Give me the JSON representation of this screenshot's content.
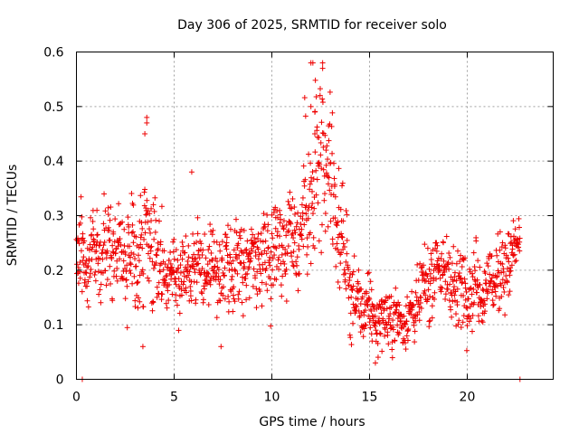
{
  "chart_data": {
    "type": "scatter",
    "title": "Day 306 of 2025, SRMTID for receiver solo",
    "xlabel": "GPS time / hours",
    "ylabel": "SRMTID / TECUs",
    "xlim": [
      0,
      24.4
    ],
    "ylim": [
      0,
      0.6
    ],
    "xticks": [
      0,
      5,
      10,
      15,
      20
    ],
    "yticks": [
      0,
      0.1,
      0.2,
      0.3,
      0.4,
      0.5,
      0.6
    ],
    "xtick_labels": [
      "0",
      "5",
      "10",
      "15",
      "20"
    ],
    "ytick_labels": [
      "0",
      "0.1",
      "0.2",
      "0.3",
      "0.4",
      "0.5",
      "0.6"
    ],
    "grid": true,
    "marker": "+",
    "color": "#ee0000",
    "series": [
      {
        "name": "SRMTID",
        "time_range_hours": [
          0,
          22.7
        ],
        "profile": [
          {
            "t": 0.0,
            "mean": 0.23,
            "spread": 0.06
          },
          {
            "t": 1.0,
            "mean": 0.24,
            "spread": 0.07
          },
          {
            "t": 2.0,
            "mean": 0.25,
            "spread": 0.07
          },
          {
            "t": 3.0,
            "mean": 0.21,
            "spread": 0.07
          },
          {
            "t": 3.6,
            "mean": 0.26,
            "spread": 0.1
          },
          {
            "t": 4.5,
            "mean": 0.19,
            "spread": 0.05
          },
          {
            "t": 6.0,
            "mean": 0.21,
            "spread": 0.06
          },
          {
            "t": 7.5,
            "mean": 0.19,
            "spread": 0.06
          },
          {
            "t": 9.0,
            "mean": 0.22,
            "spread": 0.06
          },
          {
            "t": 10.5,
            "mean": 0.25,
            "spread": 0.07
          },
          {
            "t": 11.5,
            "mean": 0.28,
            "spread": 0.09
          },
          {
            "t": 12.2,
            "mean": 0.36,
            "spread": 0.13
          },
          {
            "t": 12.8,
            "mean": 0.38,
            "spread": 0.13
          },
          {
            "t": 13.5,
            "mean": 0.27,
            "spread": 0.08
          },
          {
            "t": 14.2,
            "mean": 0.14,
            "spread": 0.05
          },
          {
            "t": 15.5,
            "mean": 0.11,
            "spread": 0.04
          },
          {
            "t": 17.0,
            "mean": 0.11,
            "spread": 0.04
          },
          {
            "t": 18.5,
            "mean": 0.21,
            "spread": 0.06
          },
          {
            "t": 19.5,
            "mean": 0.17,
            "spread": 0.06
          },
          {
            "t": 21.0,
            "mean": 0.17,
            "spread": 0.05
          },
          {
            "t": 22.0,
            "mean": 0.21,
            "spread": 0.06
          },
          {
            "t": 22.7,
            "mean": 0.25,
            "spread": 0.04
          }
        ],
        "extremes": [
          {
            "t": 3.6,
            "y": 0.48
          },
          {
            "t": 3.6,
            "y": 0.47
          },
          {
            "t": 3.5,
            "y": 0.45
          },
          {
            "t": 3.4,
            "y": 0.06
          },
          {
            "t": 5.9,
            "y": 0.38
          },
          {
            "t": 7.4,
            "y": 0.06
          },
          {
            "t": 12.0,
            "y": 0.58
          },
          {
            "t": 12.1,
            "y": 0.58
          },
          {
            "t": 12.6,
            "y": 0.58
          },
          {
            "t": 12.6,
            "y": 0.57
          },
          {
            "t": 12.0,
            "y": 0.5
          },
          {
            "t": 12.2,
            "y": 0.49
          },
          {
            "t": 12.2,
            "y": 0.45
          },
          {
            "t": 15.3,
            "y": 0.03
          },
          {
            "t": 0.3,
            "y": 0.0
          },
          {
            "t": 22.7,
            "y": 0.0
          }
        ]
      }
    ]
  }
}
